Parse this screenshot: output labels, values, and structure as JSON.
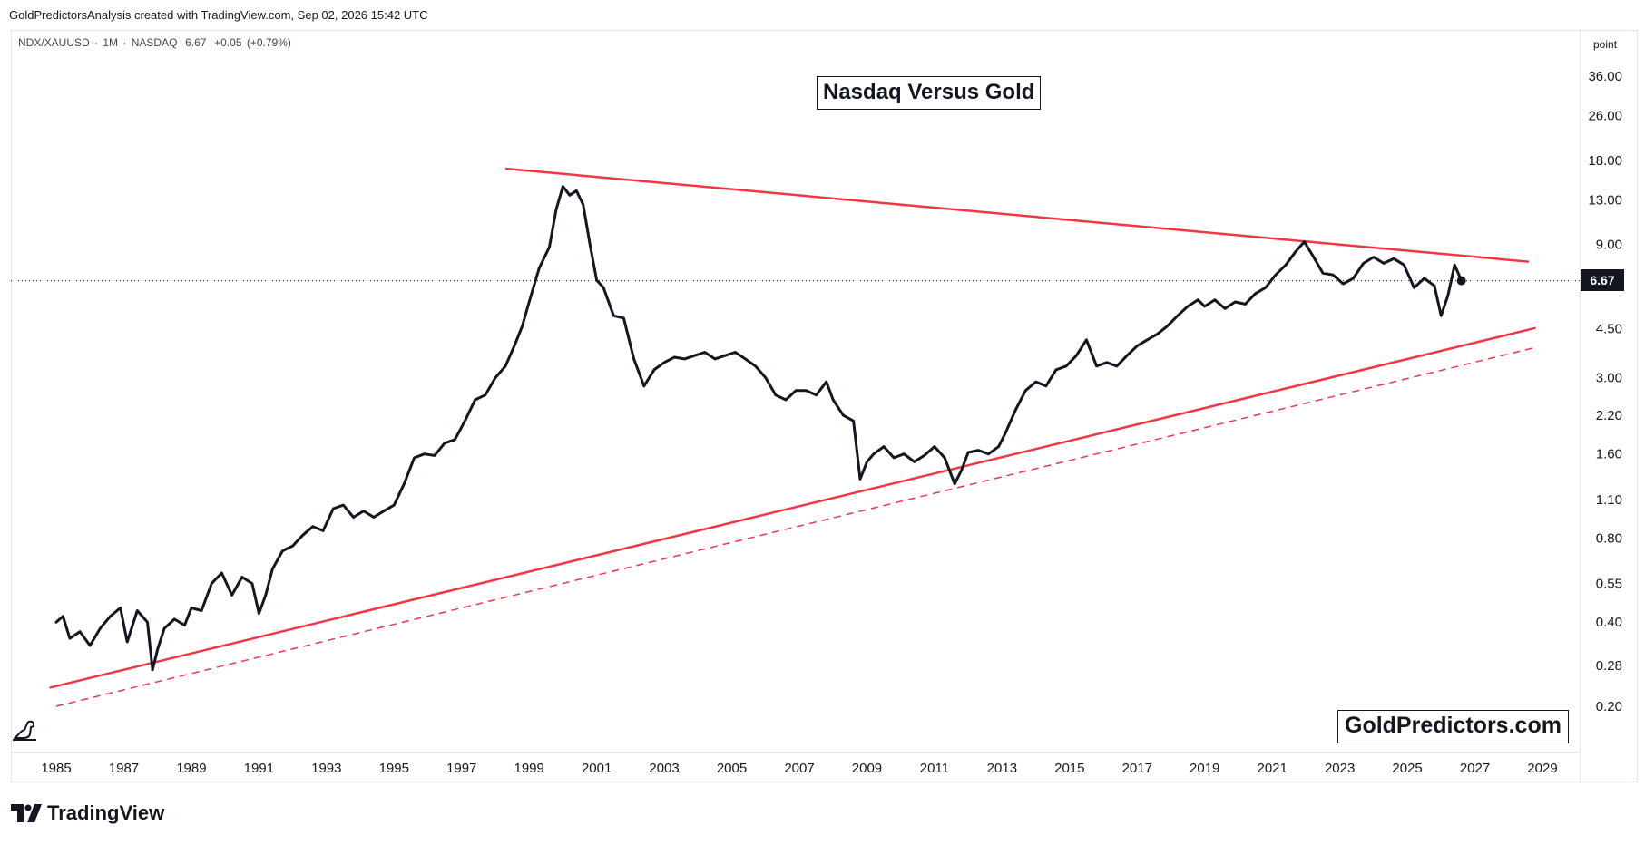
{
  "header": {
    "text": "GoldPredictorsAnalysis created with TradingView.com, Sep 02, 2026 15:42 UTC"
  },
  "symbol": {
    "name": "NDX/XAUUSD",
    "interval": "1M",
    "exchange": "NASDAQ",
    "last": "6.67",
    "change": "+0.05",
    "change_pct": "(+0.79%)",
    "separator": "·"
  },
  "price_scale": {
    "unit": "point",
    "last_tag": "6.67"
  },
  "brand": {
    "watermark": "GoldPredictors.com",
    "footer": "TradingView"
  },
  "colors": {
    "line": "#131722",
    "trendline": "#f23645",
    "grid": "#e0e3eb",
    "tag_bg": "#131722"
  },
  "chart_data": {
    "type": "line",
    "title": "Nasdaq Versus Gold",
    "y_scale": "log",
    "ylim": [
      0.14,
      52
    ],
    "xlim": [
      1984.5,
      2029.7
    ],
    "yticks": [
      "36.00",
      "26.00",
      "18.00",
      "13.00",
      "9.00",
      "6.67",
      "4.50",
      "3.00",
      "2.20",
      "1.60",
      "1.10",
      "0.80",
      "0.55",
      "0.40",
      "0.28",
      "0.20"
    ],
    "xticks": [
      "1985",
      "1987",
      "1989",
      "1991",
      "1993",
      "1995",
      "1997",
      "1999",
      "2001",
      "2003",
      "2005",
      "2007",
      "2009",
      "2011",
      "2013",
      "2015",
      "2017",
      "2019",
      "2021",
      "2023",
      "2025",
      "2027",
      "2029"
    ],
    "series": [
      {
        "x": [
          1985.0,
          1985.2,
          1985.4,
          1985.7,
          1986.0,
          1986.3,
          1986.6,
          1986.9,
          1987.1,
          1987.4,
          1987.7,
          1987.85,
          1988.0,
          1988.2,
          1988.5,
          1988.8,
          1989.0,
          1989.3,
          1989.6,
          1989.9,
          1990.2,
          1990.5,
          1990.8,
          1991.0,
          1991.2,
          1991.4,
          1991.7,
          1992.0,
          1992.3,
          1992.6,
          1992.9,
          1993.2,
          1993.5,
          1993.8,
          1994.1,
          1994.4,
          1994.7,
          1995.0,
          1995.3,
          1995.6,
          1995.9,
          1996.2,
          1996.5,
          1996.8,
          1997.1,
          1997.4,
          1997.7,
          1998.0,
          1998.3,
          1998.6,
          1998.8,
          1999.0,
          1999.3,
          1999.6,
          1999.8,
          2000.0,
          2000.2,
          2000.4,
          2000.6,
          2000.8,
          2001.0,
          2001.2,
          2001.5,
          2001.8,
          2002.1,
          2002.4,
          2002.7,
          2003.0,
          2003.3,
          2003.6,
          2003.9,
          2004.2,
          2004.5,
          2004.8,
          2005.1,
          2005.4,
          2005.7,
          2006.0,
          2006.3,
          2006.6,
          2006.9,
          2007.2,
          2007.5,
          2007.8,
          2008.0,
          2008.3,
          2008.6,
          2008.8,
          2009.0,
          2009.2,
          2009.5,
          2009.8,
          2010.1,
          2010.4,
          2010.7,
          2011.0,
          2011.3,
          2011.6,
          2011.8,
          2012.0,
          2012.3,
          2012.6,
          2012.9,
          2013.1,
          2013.4,
          2013.7,
          2014.0,
          2014.3,
          2014.6,
          2014.9,
          2015.2,
          2015.5,
          2015.8,
          2016.1,
          2016.4,
          2016.7,
          2017.0,
          2017.3,
          2017.6,
          2017.9,
          2018.2,
          2018.5,
          2018.8,
          2019.0,
          2019.3,
          2019.6,
          2019.9,
          2020.2,
          2020.5,
          2020.8,
          2021.1,
          2021.4,
          2021.7,
          2021.95,
          2022.2,
          2022.5,
          2022.8,
          2023.1,
          2023.4,
          2023.7,
          2024.0,
          2024.3,
          2024.6,
          2024.9,
          2025.2,
          2025.5,
          2025.8,
          2026.0,
          2026.2,
          2026.4,
          2026.6
        ],
        "y": [
          0.4,
          0.42,
          0.35,
          0.37,
          0.33,
          0.38,
          0.42,
          0.45,
          0.34,
          0.44,
          0.4,
          0.27,
          0.32,
          0.38,
          0.41,
          0.39,
          0.45,
          0.44,
          0.55,
          0.6,
          0.5,
          0.58,
          0.55,
          0.43,
          0.5,
          0.62,
          0.72,
          0.75,
          0.82,
          0.88,
          0.85,
          1.02,
          1.05,
          0.95,
          1.0,
          0.95,
          1.0,
          1.05,
          1.25,
          1.55,
          1.6,
          1.58,
          1.75,
          1.8,
          2.1,
          2.5,
          2.6,
          3.0,
          3.3,
          4.0,
          4.6,
          5.6,
          7.4,
          8.8,
          12.0,
          14.5,
          13.5,
          14.0,
          12.5,
          9.0,
          6.7,
          6.3,
          5.0,
          4.9,
          3.5,
          2.8,
          3.2,
          3.4,
          3.55,
          3.5,
          3.6,
          3.7,
          3.5,
          3.6,
          3.7,
          3.5,
          3.3,
          3.0,
          2.6,
          2.5,
          2.7,
          2.7,
          2.6,
          2.9,
          2.5,
          2.2,
          2.1,
          1.3,
          1.5,
          1.6,
          1.7,
          1.55,
          1.6,
          1.5,
          1.58,
          1.7,
          1.55,
          1.25,
          1.4,
          1.62,
          1.65,
          1.6,
          1.7,
          1.9,
          2.3,
          2.7,
          2.9,
          2.8,
          3.2,
          3.3,
          3.6,
          4.1,
          3.3,
          3.4,
          3.3,
          3.6,
          3.9,
          4.1,
          4.3,
          4.6,
          5.0,
          5.4,
          5.7,
          5.4,
          5.7,
          5.3,
          5.6,
          5.5,
          6.0,
          6.3,
          7.0,
          7.6,
          8.5,
          9.2,
          8.2,
          7.1,
          7.0,
          6.5,
          6.8,
          7.7,
          8.1,
          7.7,
          8.0,
          7.6,
          6.3,
          6.8,
          6.4,
          5.0,
          5.9,
          7.6,
          6.67
        ]
      }
    ],
    "trendlines": [
      {
        "style": "solid",
        "x": [
          1998.3,
          2028.6
        ],
        "y": [
          16.8,
          7.8
        ]
      },
      {
        "style": "solid",
        "x": [
          1984.8,
          2028.8
        ],
        "y": [
          0.233,
          4.52
        ]
      },
      {
        "style": "dashed",
        "x": [
          1985.0,
          2028.8
        ],
        "y": [
          0.2,
          3.85
        ]
      }
    ]
  }
}
